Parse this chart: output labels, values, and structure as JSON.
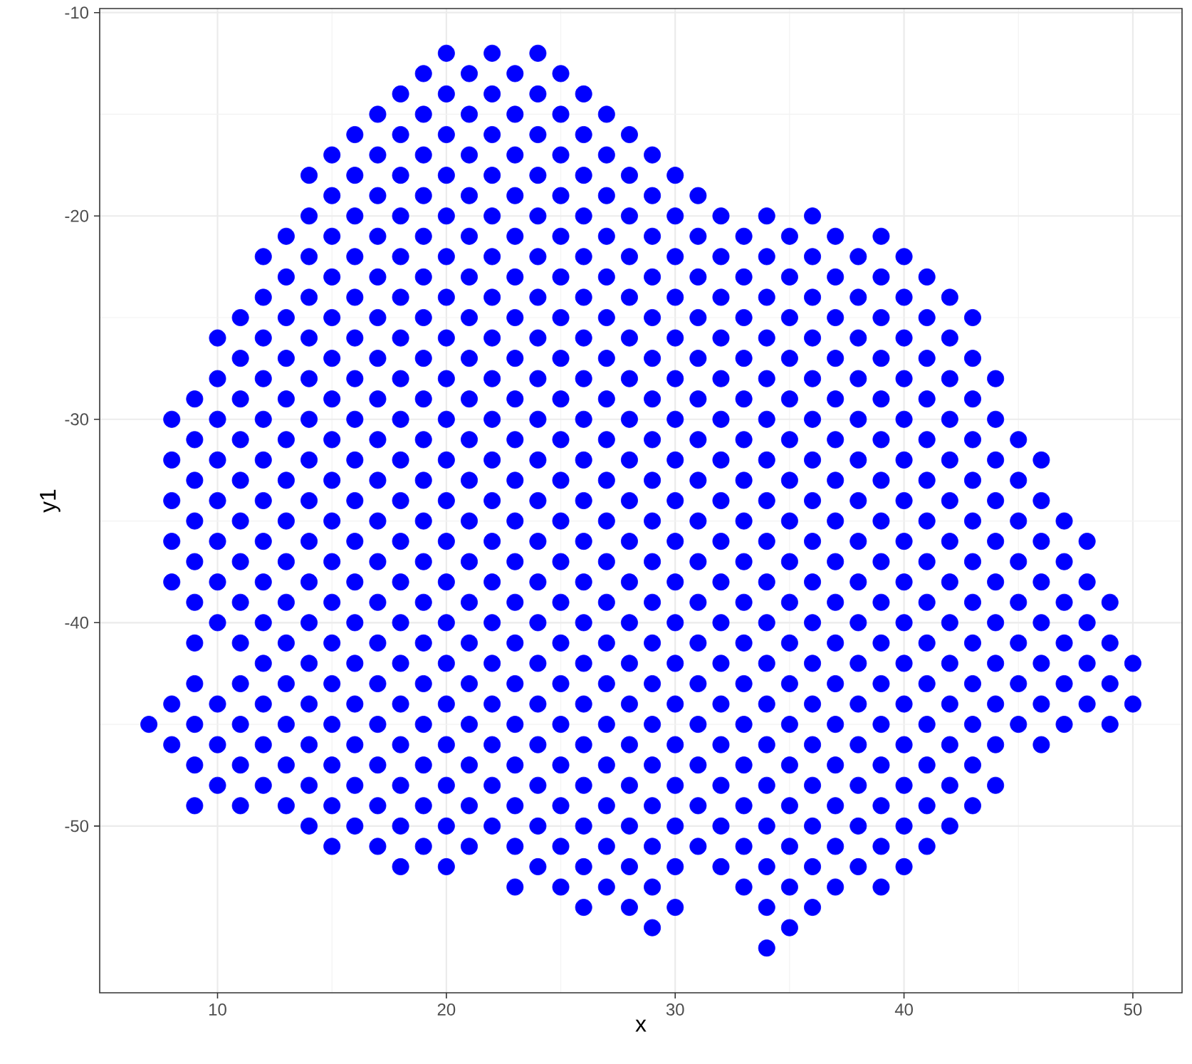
{
  "chart_data": {
    "type": "scatter",
    "xlabel": "x",
    "ylabel": "y1",
    "color": "#0000ff",
    "grid": true,
    "xlim": [
      4.85,
      52.15
    ],
    "ylim": [
      -58.2,
      -9.8
    ],
    "xticks": [
      10,
      20,
      30,
      40,
      50
    ],
    "yticks": [
      -50,
      -40,
      -30,
      -20,
      -10
    ],
    "series": [
      {
        "x": [
          20,
          22,
          24
        ],
        "values": [
          -12,
          -12,
          -12
        ]
      },
      {
        "x": [
          19,
          21,
          23,
          25
        ],
        "values": [
          -13,
          -13,
          -13,
          -13
        ]
      },
      {
        "x": [
          18,
          20,
          22,
          24,
          26
        ],
        "values": [
          -14,
          -14,
          -14,
          -14,
          -14
        ]
      },
      {
        "x": [
          17,
          19,
          21,
          23,
          25,
          27
        ],
        "values": [
          -15,
          -15,
          -15,
          -15,
          -15,
          -15
        ]
      },
      {
        "x": [
          16,
          18,
          20,
          22,
          24,
          26,
          28
        ],
        "values": [
          -16,
          -16,
          -16,
          -16,
          -16,
          -16,
          -16
        ]
      },
      {
        "x": [
          15,
          17,
          19,
          21,
          23,
          25,
          27,
          29
        ],
        "values": [
          -17,
          -17,
          -17,
          -17,
          -17,
          -17,
          -17,
          -17
        ]
      },
      {
        "x": [
          14,
          16,
          18,
          20,
          22,
          24,
          26,
          28,
          30
        ],
        "values": [
          -18,
          -18,
          -18,
          -18,
          -18,
          -18,
          -18,
          -18,
          -18
        ]
      },
      {
        "x": [
          15,
          17,
          19,
          21,
          23,
          25,
          27,
          29,
          31
        ],
        "values": [
          -19,
          -19,
          -19,
          -19,
          -19,
          -19,
          -19,
          -19,
          -19
        ]
      },
      {
        "x": [
          14,
          16,
          18,
          20,
          22,
          24,
          26,
          28,
          30,
          32,
          34,
          36
        ],
        "values": [
          -20,
          -20,
          -20,
          -20,
          -20,
          -20,
          -20,
          -20,
          -20,
          -20,
          -20,
          -20
        ]
      },
      {
        "x": [
          13,
          15,
          17,
          19,
          21,
          23,
          25,
          27,
          29,
          31,
          33,
          35,
          37,
          39
        ],
        "values": [
          -21,
          -21,
          -21,
          -21,
          -21,
          -21,
          -21,
          -21,
          -21,
          -21,
          -21,
          -21,
          -21,
          -21
        ]
      },
      {
        "x": [
          12,
          14,
          16,
          18,
          20,
          22,
          24,
          26,
          28,
          30,
          32,
          34,
          36,
          38,
          40
        ],
        "values": [
          -22,
          -22,
          -22,
          -22,
          -22,
          -22,
          -22,
          -22,
          -22,
          -22,
          -22,
          -22,
          -22,
          -22,
          -22
        ]
      },
      {
        "x": [
          13,
          15,
          17,
          19,
          21,
          23,
          25,
          27,
          29,
          31,
          33,
          35,
          37,
          39,
          41
        ],
        "values": [
          -23,
          -23,
          -23,
          -23,
          -23,
          -23,
          -23,
          -23,
          -23,
          -23,
          -23,
          -23,
          -23,
          -23,
          -23
        ]
      },
      {
        "x": [
          12,
          14,
          16,
          18,
          20,
          22,
          24,
          26,
          28,
          30,
          32,
          34,
          36,
          38,
          40,
          42
        ],
        "values": [
          -24,
          -24,
          -24,
          -24,
          -24,
          -24,
          -24,
          -24,
          -24,
          -24,
          -24,
          -24,
          -24,
          -24,
          -24,
          -24
        ]
      },
      {
        "x": [
          11,
          13,
          15,
          17,
          19,
          21,
          23,
          25,
          27,
          29,
          31,
          33,
          35,
          37,
          39,
          41,
          43
        ],
        "values": [
          -25,
          -25,
          -25,
          -25,
          -25,
          -25,
          -25,
          -25,
          -25,
          -25,
          -25,
          -25,
          -25,
          -25,
          -25,
          -25,
          -25
        ]
      },
      {
        "x": [
          10,
          12,
          14,
          16,
          18,
          20,
          22,
          24,
          26,
          28,
          30,
          32,
          34,
          36,
          38,
          40,
          42
        ],
        "values": [
          -26,
          -26,
          -26,
          -26,
          -26,
          -26,
          -26,
          -26,
          -26,
          -26,
          -26,
          -26,
          -26,
          -26,
          -26,
          -26,
          -26
        ]
      },
      {
        "x": [
          11,
          13,
          15,
          17,
          19,
          21,
          23,
          25,
          27,
          29,
          31,
          33,
          35,
          37,
          39,
          41,
          43
        ],
        "values": [
          -27,
          -27,
          -27,
          -27,
          -27,
          -27,
          -27,
          -27,
          -27,
          -27,
          -27,
          -27,
          -27,
          -27,
          -27,
          -27,
          -27
        ]
      },
      {
        "x": [
          10,
          12,
          14,
          16,
          18,
          20,
          22,
          24,
          26,
          28,
          30,
          32,
          34,
          36,
          38,
          40,
          42,
          44
        ],
        "values": [
          -28,
          -28,
          -28,
          -28,
          -28,
          -28,
          -28,
          -28,
          -28,
          -28,
          -28,
          -28,
          -28,
          -28,
          -28,
          -28,
          -28,
          -28
        ]
      },
      {
        "x": [
          9,
          11,
          13,
          15,
          17,
          19,
          21,
          23,
          25,
          27,
          29,
          31,
          33,
          35,
          37,
          39,
          41,
          43
        ],
        "values": [
          -29,
          -29,
          -29,
          -29,
          -29,
          -29,
          -29,
          -29,
          -29,
          -29,
          -29,
          -29,
          -29,
          -29,
          -29,
          -29,
          -29,
          -29
        ]
      },
      {
        "x": [
          8,
          10,
          12,
          14,
          16,
          18,
          20,
          22,
          24,
          26,
          28,
          30,
          32,
          34,
          36,
          38,
          40,
          42,
          44
        ],
        "values": [
          -30,
          -30,
          -30,
          -30,
          -30,
          -30,
          -30,
          -30,
          -30,
          -30,
          -30,
          -30,
          -30,
          -30,
          -30,
          -30,
          -30,
          -30,
          -30
        ]
      },
      {
        "x": [
          9,
          11,
          13,
          15,
          17,
          19,
          21,
          23,
          25,
          27,
          29,
          31,
          33,
          35,
          37,
          39,
          41,
          43,
          45
        ],
        "values": [
          -31,
          -31,
          -31,
          -31,
          -31,
          -31,
          -31,
          -31,
          -31,
          -31,
          -31,
          -31,
          -31,
          -31,
          -31,
          -31,
          -31,
          -31,
          -31
        ]
      },
      {
        "x": [
          8,
          10,
          12,
          14,
          16,
          18,
          20,
          22,
          24,
          26,
          28,
          30,
          32,
          34,
          36,
          38,
          40,
          42,
          44,
          46
        ],
        "values": [
          -32,
          -32,
          -32,
          -32,
          -32,
          -32,
          -32,
          -32,
          -32,
          -32,
          -32,
          -32,
          -32,
          -32,
          -32,
          -32,
          -32,
          -32,
          -32,
          -32
        ]
      },
      {
        "x": [
          9,
          11,
          13,
          15,
          17,
          19,
          21,
          23,
          25,
          27,
          29,
          31,
          33,
          35,
          37,
          39,
          41,
          43,
          45
        ],
        "values": [
          -33,
          -33,
          -33,
          -33,
          -33,
          -33,
          -33,
          -33,
          -33,
          -33,
          -33,
          -33,
          -33,
          -33,
          -33,
          -33,
          -33,
          -33,
          -33
        ]
      },
      {
        "x": [
          8,
          10,
          12,
          14,
          16,
          18,
          20,
          22,
          24,
          26,
          28,
          30,
          32,
          34,
          36,
          38,
          40,
          42,
          44,
          46
        ],
        "values": [
          -34,
          -34,
          -34,
          -34,
          -34,
          -34,
          -34,
          -34,
          -34,
          -34,
          -34,
          -34,
          -34,
          -34,
          -34,
          -34,
          -34,
          -34,
          -34,
          -34
        ]
      },
      {
        "x": [
          9,
          11,
          13,
          15,
          17,
          19,
          21,
          23,
          25,
          27,
          29,
          31,
          33,
          35,
          37,
          39,
          41,
          43,
          45,
          47
        ],
        "values": [
          -35,
          -35,
          -35,
          -35,
          -35,
          -35,
          -35,
          -35,
          -35,
          -35,
          -35,
          -35,
          -35,
          -35,
          -35,
          -35,
          -35,
          -35,
          -35,
          -35
        ]
      },
      {
        "x": [
          8,
          10,
          12,
          14,
          16,
          18,
          20,
          22,
          24,
          26,
          28,
          30,
          32,
          34,
          36,
          38,
          40,
          42,
          44,
          46,
          48
        ],
        "values": [
          -36,
          -36,
          -36,
          -36,
          -36,
          -36,
          -36,
          -36,
          -36,
          -36,
          -36,
          -36,
          -36,
          -36,
          -36,
          -36,
          -36,
          -36,
          -36,
          -36,
          -36
        ]
      },
      {
        "x": [
          9,
          11,
          13,
          15,
          17,
          19,
          21,
          23,
          25,
          27,
          29,
          31,
          33,
          35,
          37,
          39,
          41,
          43,
          45,
          47
        ],
        "values": [
          -37,
          -37,
          -37,
          -37,
          -37,
          -37,
          -37,
          -37,
          -37,
          -37,
          -37,
          -37,
          -37,
          -37,
          -37,
          -37,
          -37,
          -37,
          -37,
          -37
        ]
      },
      {
        "x": [
          8,
          10,
          12,
          14,
          16,
          18,
          20,
          22,
          24,
          26,
          28,
          30,
          32,
          34,
          36,
          38,
          40,
          42,
          44,
          46,
          48
        ],
        "values": [
          -38,
          -38,
          -38,
          -38,
          -38,
          -38,
          -38,
          -38,
          -38,
          -38,
          -38,
          -38,
          -38,
          -38,
          -38,
          -38,
          -38,
          -38,
          -38,
          -38,
          -38
        ]
      },
      {
        "x": [
          9,
          11,
          13,
          15,
          17,
          19,
          21,
          23,
          25,
          27,
          29,
          31,
          33,
          35,
          37,
          39,
          41,
          43,
          45,
          47,
          49
        ],
        "values": [
          -39,
          -39,
          -39,
          -39,
          -39,
          -39,
          -39,
          -39,
          -39,
          -39,
          -39,
          -39,
          -39,
          -39,
          -39,
          -39,
          -39,
          -39,
          -39,
          -39,
          -39
        ]
      },
      {
        "x": [
          10,
          12,
          14,
          16,
          18,
          20,
          22,
          24,
          26,
          28,
          30,
          32,
          34,
          36,
          38,
          40,
          42,
          44,
          46,
          48
        ],
        "values": [
          -40,
          -40,
          -40,
          -40,
          -40,
          -40,
          -40,
          -40,
          -40,
          -40,
          -40,
          -40,
          -40,
          -40,
          -40,
          -40,
          -40,
          -40,
          -40,
          -40
        ]
      },
      {
        "x": [
          9,
          11,
          13,
          15,
          17,
          19,
          21,
          23,
          25,
          27,
          29,
          31,
          33,
          35,
          37,
          39,
          41,
          43,
          45,
          47,
          49
        ],
        "values": [
          -41,
          -41,
          -41,
          -41,
          -41,
          -41,
          -41,
          -41,
          -41,
          -41,
          -41,
          -41,
          -41,
          -41,
          -41,
          -41,
          -41,
          -41,
          -41,
          -41,
          -41
        ]
      },
      {
        "x": [
          12,
          14,
          16,
          18,
          20,
          22,
          24,
          26,
          28,
          30,
          32,
          34,
          36,
          38,
          40,
          42,
          44,
          46,
          48,
          50
        ],
        "values": [
          -42,
          -42,
          -42,
          -42,
          -42,
          -42,
          -42,
          -42,
          -42,
          -42,
          -42,
          -42,
          -42,
          -42,
          -42,
          -42,
          -42,
          -42,
          -42,
          -42
        ]
      },
      {
        "x": [
          9,
          11,
          13,
          15,
          17,
          19,
          21,
          23,
          25,
          27,
          29,
          31,
          33,
          35,
          37,
          39,
          41,
          43,
          45,
          47,
          49
        ],
        "values": [
          -43,
          -43,
          -43,
          -43,
          -43,
          -43,
          -43,
          -43,
          -43,
          -43,
          -43,
          -43,
          -43,
          -43,
          -43,
          -43,
          -43,
          -43,
          -43,
          -43,
          -43
        ]
      },
      {
        "x": [
          8,
          10,
          12,
          14,
          16,
          18,
          20,
          22,
          24,
          26,
          28,
          30,
          32,
          34,
          36,
          38,
          40,
          42,
          44,
          46,
          48,
          50
        ],
        "values": [
          -44,
          -44,
          -44,
          -44,
          -44,
          -44,
          -44,
          -44,
          -44,
          -44,
          -44,
          -44,
          -44,
          -44,
          -44,
          -44,
          -44,
          -44,
          -44,
          -44,
          -44,
          -44
        ]
      },
      {
        "x": [
          7,
          9,
          11,
          13,
          15,
          17,
          19,
          21,
          23,
          25,
          27,
          29,
          31,
          33,
          35,
          37,
          39,
          41,
          43,
          45,
          47,
          49
        ],
        "values": [
          -45,
          -45,
          -45,
          -45,
          -45,
          -45,
          -45,
          -45,
          -45,
          -45,
          -45,
          -45,
          -45,
          -45,
          -45,
          -45,
          -45,
          -45,
          -45,
          -45,
          -45,
          -45
        ]
      },
      {
        "x": [
          8,
          10,
          12,
          14,
          16,
          18,
          20,
          22,
          24,
          26,
          28,
          30,
          32,
          34,
          36,
          38,
          40,
          42,
          44,
          46
        ],
        "values": [
          -46,
          -46,
          -46,
          -46,
          -46,
          -46,
          -46,
          -46,
          -46,
          -46,
          -46,
          -46,
          -46,
          -46,
          -46,
          -46,
          -46,
          -46,
          -46,
          -46
        ]
      },
      {
        "x": [
          9,
          11,
          13,
          15,
          17,
          19,
          21,
          23,
          25,
          27,
          29,
          31,
          33,
          35,
          37,
          39,
          41,
          43
        ],
        "values": [
          -47,
          -47,
          -47,
          -47,
          -47,
          -47,
          -47,
          -47,
          -47,
          -47,
          -47,
          -47,
          -47,
          -47,
          -47,
          -47,
          -47,
          -47
        ]
      },
      {
        "x": [
          10,
          12,
          14,
          16,
          18,
          20,
          22,
          24,
          26,
          28,
          30,
          32,
          34,
          36,
          38,
          40,
          42,
          44
        ],
        "values": [
          -48,
          -48,
          -48,
          -48,
          -48,
          -48,
          -48,
          -48,
          -48,
          -48,
          -48,
          -48,
          -48,
          -48,
          -48,
          -48,
          -48,
          -48
        ]
      },
      {
        "x": [
          9,
          11,
          13,
          15,
          17,
          19,
          21,
          23,
          25,
          27,
          29,
          31,
          33,
          35,
          37,
          39,
          41,
          43
        ],
        "values": [
          -49,
          -49,
          -49,
          -49,
          -49,
          -49,
          -49,
          -49,
          -49,
          -49,
          -49,
          -49,
          -49,
          -49,
          -49,
          -49,
          -49,
          -49
        ]
      },
      {
        "x": [
          14,
          16,
          18,
          20,
          22,
          24,
          26,
          28,
          30,
          32,
          34,
          36,
          38,
          40,
          42
        ],
        "values": [
          -50,
          -50,
          -50,
          -50,
          -50,
          -50,
          -50,
          -50,
          -50,
          -50,
          -50,
          -50,
          -50,
          -50,
          -50
        ]
      },
      {
        "x": [
          15,
          17,
          19,
          21,
          23,
          25,
          27,
          29,
          31,
          33,
          35,
          37,
          39,
          41
        ],
        "values": [
          -51,
          -51,
          -51,
          -51,
          -51,
          -51,
          -51,
          -51,
          -51,
          -51,
          -51,
          -51,
          -51,
          -51
        ]
      },
      {
        "x": [
          18,
          20,
          24,
          26,
          28,
          30,
          32,
          34,
          36,
          38,
          40
        ],
        "values": [
          -52,
          -52,
          -52,
          -52,
          -52,
          -52,
          -52,
          -52,
          -52,
          -52,
          -52
        ]
      },
      {
        "x": [
          23,
          25,
          27,
          29,
          33,
          35,
          37,
          39
        ],
        "values": [
          -53,
          -53,
          -53,
          -53,
          -53,
          -53,
          -53,
          -53
        ]
      },
      {
        "x": [
          26,
          28,
          30,
          34,
          36
        ],
        "values": [
          -54,
          -54,
          -54,
          -54,
          -54
        ]
      },
      {
        "x": [
          29,
          35
        ],
        "values": [
          -55,
          -55
        ]
      },
      {
        "x": [
          34
        ],
        "values": [
          -56
        ]
      }
    ]
  }
}
